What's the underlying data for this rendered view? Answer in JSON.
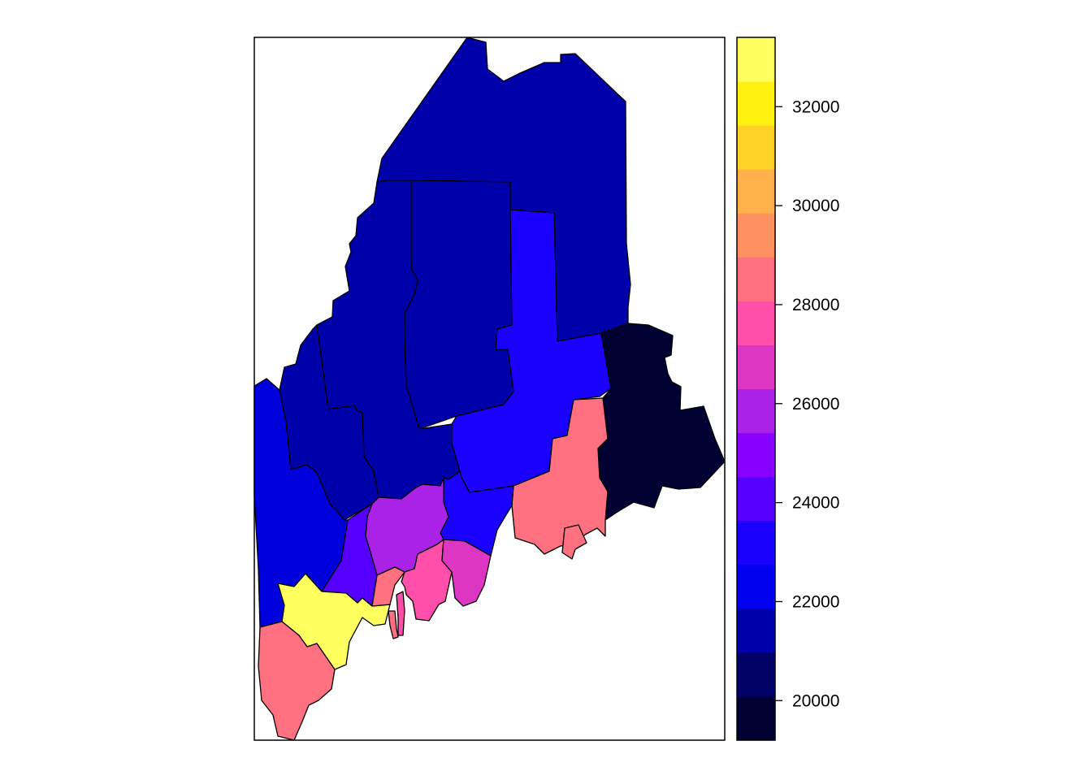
{
  "map": {
    "region": "Maine",
    "fill_scale": "sp-style palette (dark navy → blue → purple → pink → orange → yellow)"
  },
  "legend": {
    "min": 19200,
    "max": 33400,
    "step": 1000,
    "tick_values": [
      20000,
      22000,
      24000,
      26000,
      28000,
      30000,
      32000
    ],
    "tick_labels": [
      "20000",
      "22000",
      "24000",
      "26000",
      "28000",
      "30000",
      "32000"
    ],
    "colors": [
      "#000033",
      "#000066",
      "#0000AA",
      "#0000EE",
      "#1A00FF",
      "#5500FF",
      "#8800FF",
      "#AA22E6",
      "#DD36C3",
      "#FF4FAB",
      "#FF7080",
      "#FF9060",
      "#FFB04B",
      "#FFD028",
      "#FFF010",
      "#FFFF60"
    ]
  },
  "counties": [
    {
      "id": "aroostook",
      "value": 21000,
      "color": "#0000AA"
    },
    {
      "id": "somerset",
      "value": 21000,
      "color": "#0000AA"
    },
    {
      "id": "piscataquis",
      "value": 21000,
      "color": "#0000AA"
    },
    {
      "id": "franklin",
      "value": 21000,
      "color": "#0000AA"
    },
    {
      "id": "oxford",
      "value": 22100,
      "color": "#0000DD"
    },
    {
      "id": "penobscot",
      "value": 22800,
      "color": "#1A00FF"
    },
    {
      "id": "washington",
      "value": 19800,
      "color": "#000033"
    },
    {
      "id": "hancock",
      "value": 28600,
      "color": "#FF7080"
    },
    {
      "id": "waldo",
      "value": 23000,
      "color": "#1A00FF"
    },
    {
      "id": "kennebec",
      "value": 25800,
      "color": "#AA22E6"
    },
    {
      "id": "androscoggin",
      "value": 24200,
      "color": "#5500FF"
    },
    {
      "id": "cumberland",
      "value": 33000,
      "color": "#FFFF60"
    },
    {
      "id": "york",
      "value": 28600,
      "color": "#FF7080"
    },
    {
      "id": "sagadahoc",
      "value": 28600,
      "color": "#FF7080"
    },
    {
      "id": "lincoln",
      "value": 27800,
      "color": "#FF4FAB"
    },
    {
      "id": "knox",
      "value": 27000,
      "color": "#DD36C3"
    }
  ]
}
